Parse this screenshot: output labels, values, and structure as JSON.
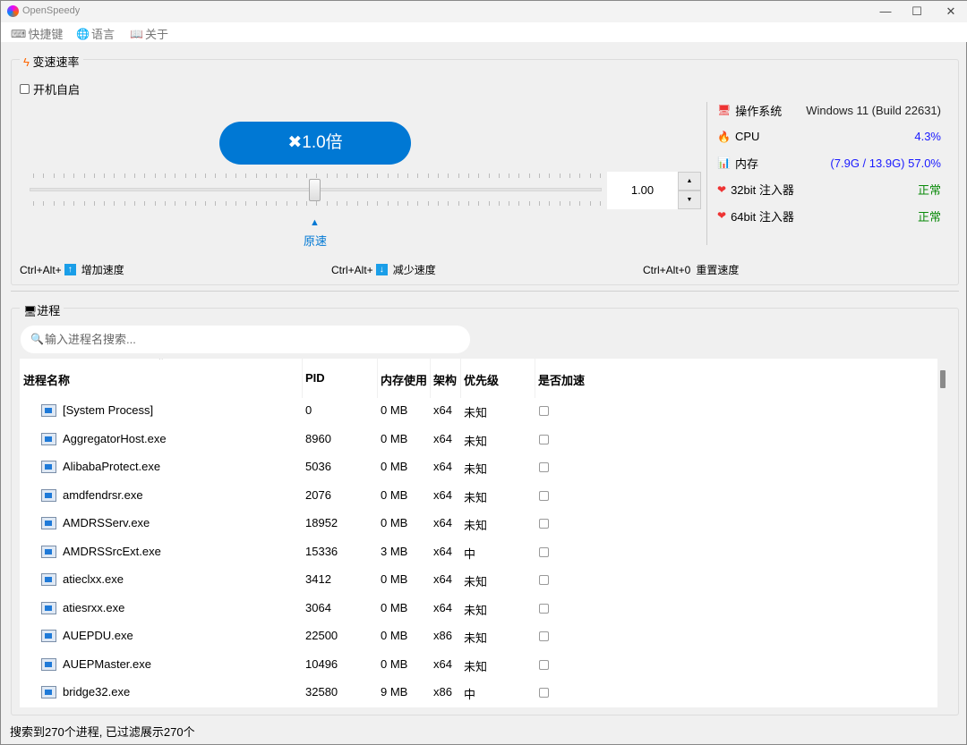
{
  "window": {
    "title": "OpenSpeedy",
    "minimize": "—",
    "maximize": "☐",
    "close": "✕"
  },
  "menu": [
    {
      "icon": "keyboard-icon",
      "glyph": "⌨",
      "label": "快捷键"
    },
    {
      "icon": "globe-icon",
      "glyph": "🌐",
      "label": "语言"
    },
    {
      "icon": "book-icon",
      "glyph": "📖",
      "label": "关于"
    }
  ],
  "speed": {
    "group_title": "变速速率",
    "autostart_label": "开机自启",
    "autostart_checked": false,
    "button_label": "✖1.0倍",
    "spin_value": "1.00",
    "slider_value": 1.0,
    "original_marker": "▲",
    "original_label": "原速"
  },
  "system": [
    {
      "icon": "monitor-icon",
      "glyph": "🖥",
      "label": "操作系统",
      "value": "Windows 11 (Build 22631)",
      "color": "#222222"
    },
    {
      "icon": "fire-icon",
      "glyph": "🔥",
      "label": "CPU",
      "value": "4.3%",
      "color": "#1a1aff"
    },
    {
      "icon": "chart-icon",
      "glyph": "📊",
      "label": "内存",
      "value": "(7.9G / 13.9G) 57.0%",
      "color": "#1a1aff"
    },
    {
      "icon": "heart-icon",
      "glyph": "❤",
      "label": "32bit 注入器",
      "value": "正常",
      "color": "#0a8a0a"
    },
    {
      "icon": "heart-icon",
      "glyph": "❤",
      "label": "64bit 注入器",
      "value": "正常",
      "color": "#0a8a0a"
    }
  ],
  "hotkeys": [
    {
      "prefix": "Ctrl+Alt+",
      "key": "↑",
      "label": "增加速度"
    },
    {
      "prefix": "Ctrl+Alt+",
      "key": "↓",
      "label": "减少速度"
    },
    {
      "prefix": "Ctrl+Alt+0",
      "key": "",
      "label": "重置速度"
    }
  ],
  "process": {
    "group_title": "进程",
    "search_placeholder": "输入进程名搜索...",
    "columns": [
      "进程名称",
      "PID",
      "内存使用",
      "架构",
      "优先级",
      "是否加速"
    ],
    "rows": [
      [
        "[System Process]",
        "0",
        "0 MB",
        "x64",
        "未知"
      ],
      [
        "AggregatorHost.exe",
        "8960",
        "0 MB",
        "x64",
        "未知"
      ],
      [
        "AlibabaProtect.exe",
        "5036",
        "0 MB",
        "x64",
        "未知"
      ],
      [
        "amdfendrsr.exe",
        "2076",
        "0 MB",
        "x64",
        "未知"
      ],
      [
        "AMDRSServ.exe",
        "18952",
        "0 MB",
        "x64",
        "未知"
      ],
      [
        "AMDRSSrcExt.exe",
        "15336",
        "3 MB",
        "x64",
        "中"
      ],
      [
        "atieclxx.exe",
        "3412",
        "0 MB",
        "x64",
        "未知"
      ],
      [
        "atiesrxx.exe",
        "3064",
        "0 MB",
        "x64",
        "未知"
      ],
      [
        "AUEPDU.exe",
        "22500",
        "0 MB",
        "x86",
        "未知"
      ],
      [
        "AUEPMaster.exe",
        "10496",
        "0 MB",
        "x64",
        "未知"
      ],
      [
        "bridge32.exe",
        "32580",
        "9 MB",
        "x86",
        "中"
      ]
    ]
  },
  "status": "搜索到270个进程, 已过滤展示270个",
  "colors": {
    "accent": "#0078d4"
  }
}
